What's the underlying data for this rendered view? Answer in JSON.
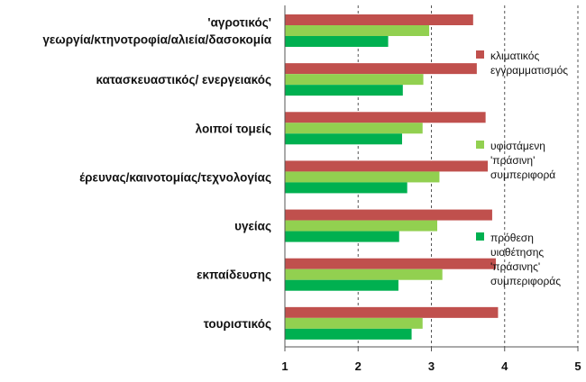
{
  "chart_data": {
    "type": "bar",
    "orientation": "horizontal",
    "categories": [
      [
        "'αγροτικός'",
        "γεωργία/κτηνοτροφία/αλιεία/δασοκομία"
      ],
      [
        "κατασκευαστικός/ ενεργειακός"
      ],
      [
        "λοιποί τομείς"
      ],
      [
        "έρευνας/καινοτομίας/τεχνολογίας"
      ],
      [
        "υγείας"
      ],
      [
        "εκπαίδευσης"
      ],
      [
        "τουριστικός"
      ]
    ],
    "series": [
      {
        "name_lines": [
          "κλιματικός",
          "εγγραμματισμός"
        ],
        "color": "#c0504d",
        "values": [
          3.57,
          3.62,
          3.74,
          3.77,
          3.83,
          3.88,
          3.91
        ]
      },
      {
        "name_lines": [
          "υφιστάμενη",
          "'πράσινη'",
          "συμπεριφορά"
        ],
        "color": "#92d050",
        "values": [
          2.97,
          2.89,
          2.88,
          3.11,
          3.08,
          3.15,
          2.88
        ]
      },
      {
        "name_lines": [
          "πρόθεση",
          "υιοθέτησης",
          "'πράσινης'",
          "συμπεριφοράς"
        ],
        "color": "#00b050",
        "values": [
          2.41,
          2.61,
          2.6,
          2.67,
          2.56,
          2.55,
          2.73
        ]
      }
    ],
    "xlim": [
      1,
      5
    ],
    "xticks": [
      1,
      2,
      3,
      4,
      5
    ],
    "grid": "vertical dashed",
    "legend_position": "right"
  }
}
